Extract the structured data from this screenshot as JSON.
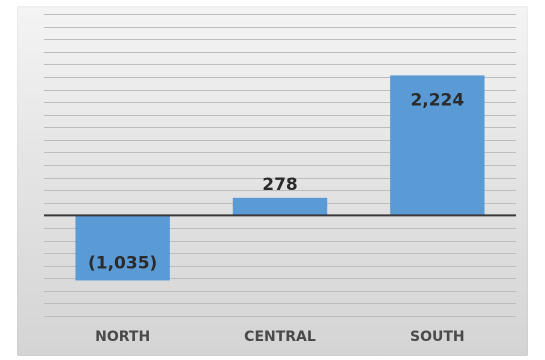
{
  "chart_data": {
    "type": "bar",
    "title": "",
    "xlabel": "",
    "ylabel": "",
    "categories": [
      "NORTH",
      "CENTRAL",
      "SOUTH"
    ],
    "values": [
      -1035,
      278,
      2224
    ],
    "data_labels": [
      "(1,035)",
      "278",
      "2,224"
    ],
    "ylim": [
      -1600,
      3200
    ],
    "grid": true,
    "legend": "none",
    "bar_color": "#5b9bd5",
    "axis_color": "#3a3a3a"
  }
}
